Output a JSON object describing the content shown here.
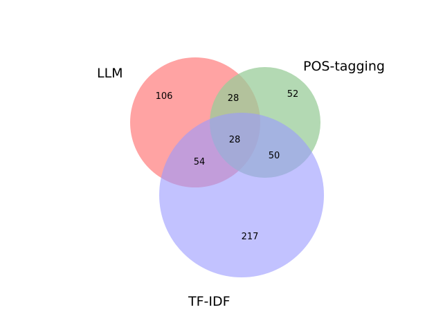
{
  "diagram": {
    "type": "venn3",
    "sets": [
      {
        "key": "llm",
        "label": "LLM",
        "color": "#ff9999"
      },
      {
        "key": "pos",
        "label": "POS-tagging",
        "color": "#99cc99"
      },
      {
        "key": "tfidf",
        "label": "TF-IDF",
        "color": "#9999ff"
      }
    ],
    "regions": {
      "llm_only": "106",
      "pos_only": "52",
      "tfidf_only": "217",
      "llm_pos": "28",
      "llm_tfidf": "54",
      "pos_tfidf": "50",
      "all_three": "28"
    }
  }
}
